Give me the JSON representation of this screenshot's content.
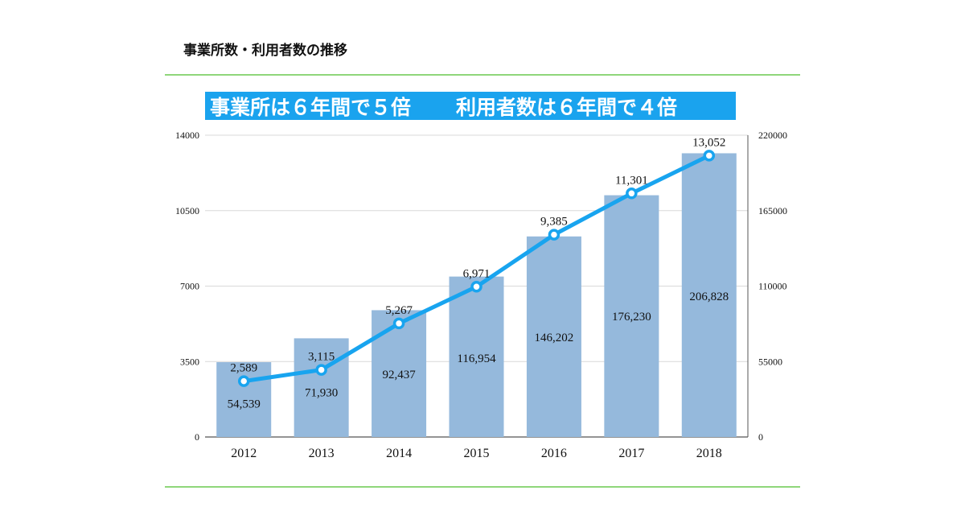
{
  "header": {
    "title": "事業所数・利用者数の推移"
  },
  "banner": {
    "text_left": "事業所は６年間で５倍",
    "text_right": "利用者数は６年間で４倍"
  },
  "colors": {
    "bar": "#95b9dc",
    "line": "#18a4ef",
    "banner": "#1aa3ee",
    "rule": "#8fd67a"
  },
  "chart_data": {
    "type": "bar+line",
    "categories": [
      "2012",
      "2013",
      "2014",
      "2015",
      "2016",
      "2017",
      "2018"
    ],
    "series": [
      {
        "kind": "bar",
        "axis": "right",
        "values": [
          54539,
          71930,
          92437,
          116954,
          146202,
          176230,
          206828
        ],
        "labels": [
          "54,539",
          "71,930",
          "92,437",
          "116,954",
          "146,202",
          "176,230",
          "206,828"
        ]
      },
      {
        "kind": "line",
        "axis": "left",
        "values": [
          2589,
          3115,
          5267,
          6971,
          9385,
          11301,
          13052
        ],
        "labels": [
          "2,589",
          "3,115",
          "5,267",
          "6,971",
          "9,385",
          "11,301",
          "13,052"
        ]
      }
    ],
    "left_axis": {
      "ylim": [
        0,
        14000
      ],
      "ticks": [
        "0",
        "3500",
        "7000",
        "10500",
        "14000"
      ]
    },
    "right_axis": {
      "ylim": [
        0,
        220000
      ],
      "ticks": [
        "0",
        "55000",
        "110000",
        "165000",
        "220000"
      ]
    },
    "grid": true
  }
}
